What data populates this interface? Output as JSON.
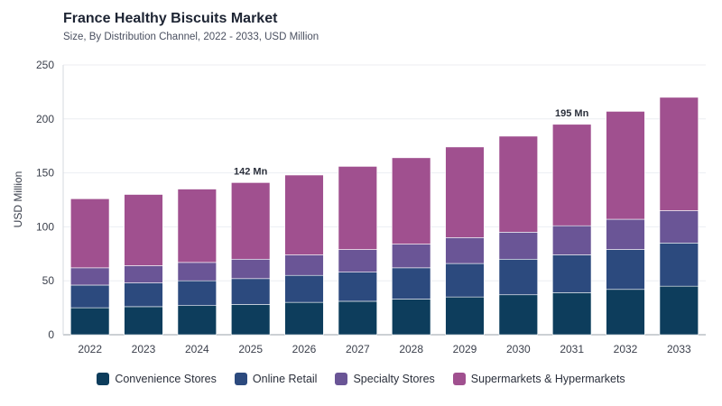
{
  "chart_data": {
    "type": "bar",
    "stacked": true,
    "title": "France Healthy Biscuits Market",
    "subtitle": "Size, By Distribution Channel, 2022 - 2033, USD Million",
    "ylabel": "USD Million",
    "ylim": [
      0,
      250
    ],
    "yticks": [
      0,
      50,
      100,
      150,
      200,
      250
    ],
    "categories": [
      "2022",
      "2023",
      "2024",
      "2025",
      "2026",
      "2027",
      "2028",
      "2029",
      "2030",
      "2031",
      "2032",
      "2033"
    ],
    "series": [
      {
        "name": "Convenience Stores",
        "color": "#0d3d5c",
        "values": [
          25,
          26,
          27,
          28,
          30,
          31,
          33,
          35,
          37,
          39,
          42,
          45
        ]
      },
      {
        "name": "Online Retail",
        "color": "#2c4a7e",
        "values": [
          21,
          22,
          23,
          24,
          25,
          27,
          29,
          31,
          33,
          35,
          37,
          40
        ]
      },
      {
        "name": "Specialty Stores",
        "color": "#6a5596",
        "values": [
          16,
          16,
          17,
          18,
          19,
          21,
          22,
          24,
          25,
          27,
          28,
          30
        ]
      },
      {
        "name": "Supermarkets & Hypermarkets",
        "color": "#a0508f",
        "values": [
          64,
          66,
          68,
          71,
          74,
          77,
          80,
          84,
          89,
          94,
          100,
          105
        ]
      }
    ],
    "annotations": [
      {
        "category": "2025",
        "text": "142 Mn"
      },
      {
        "category": "2031",
        "text": "195 Mn"
      }
    ],
    "grid": true,
    "legend": "bottom"
  }
}
